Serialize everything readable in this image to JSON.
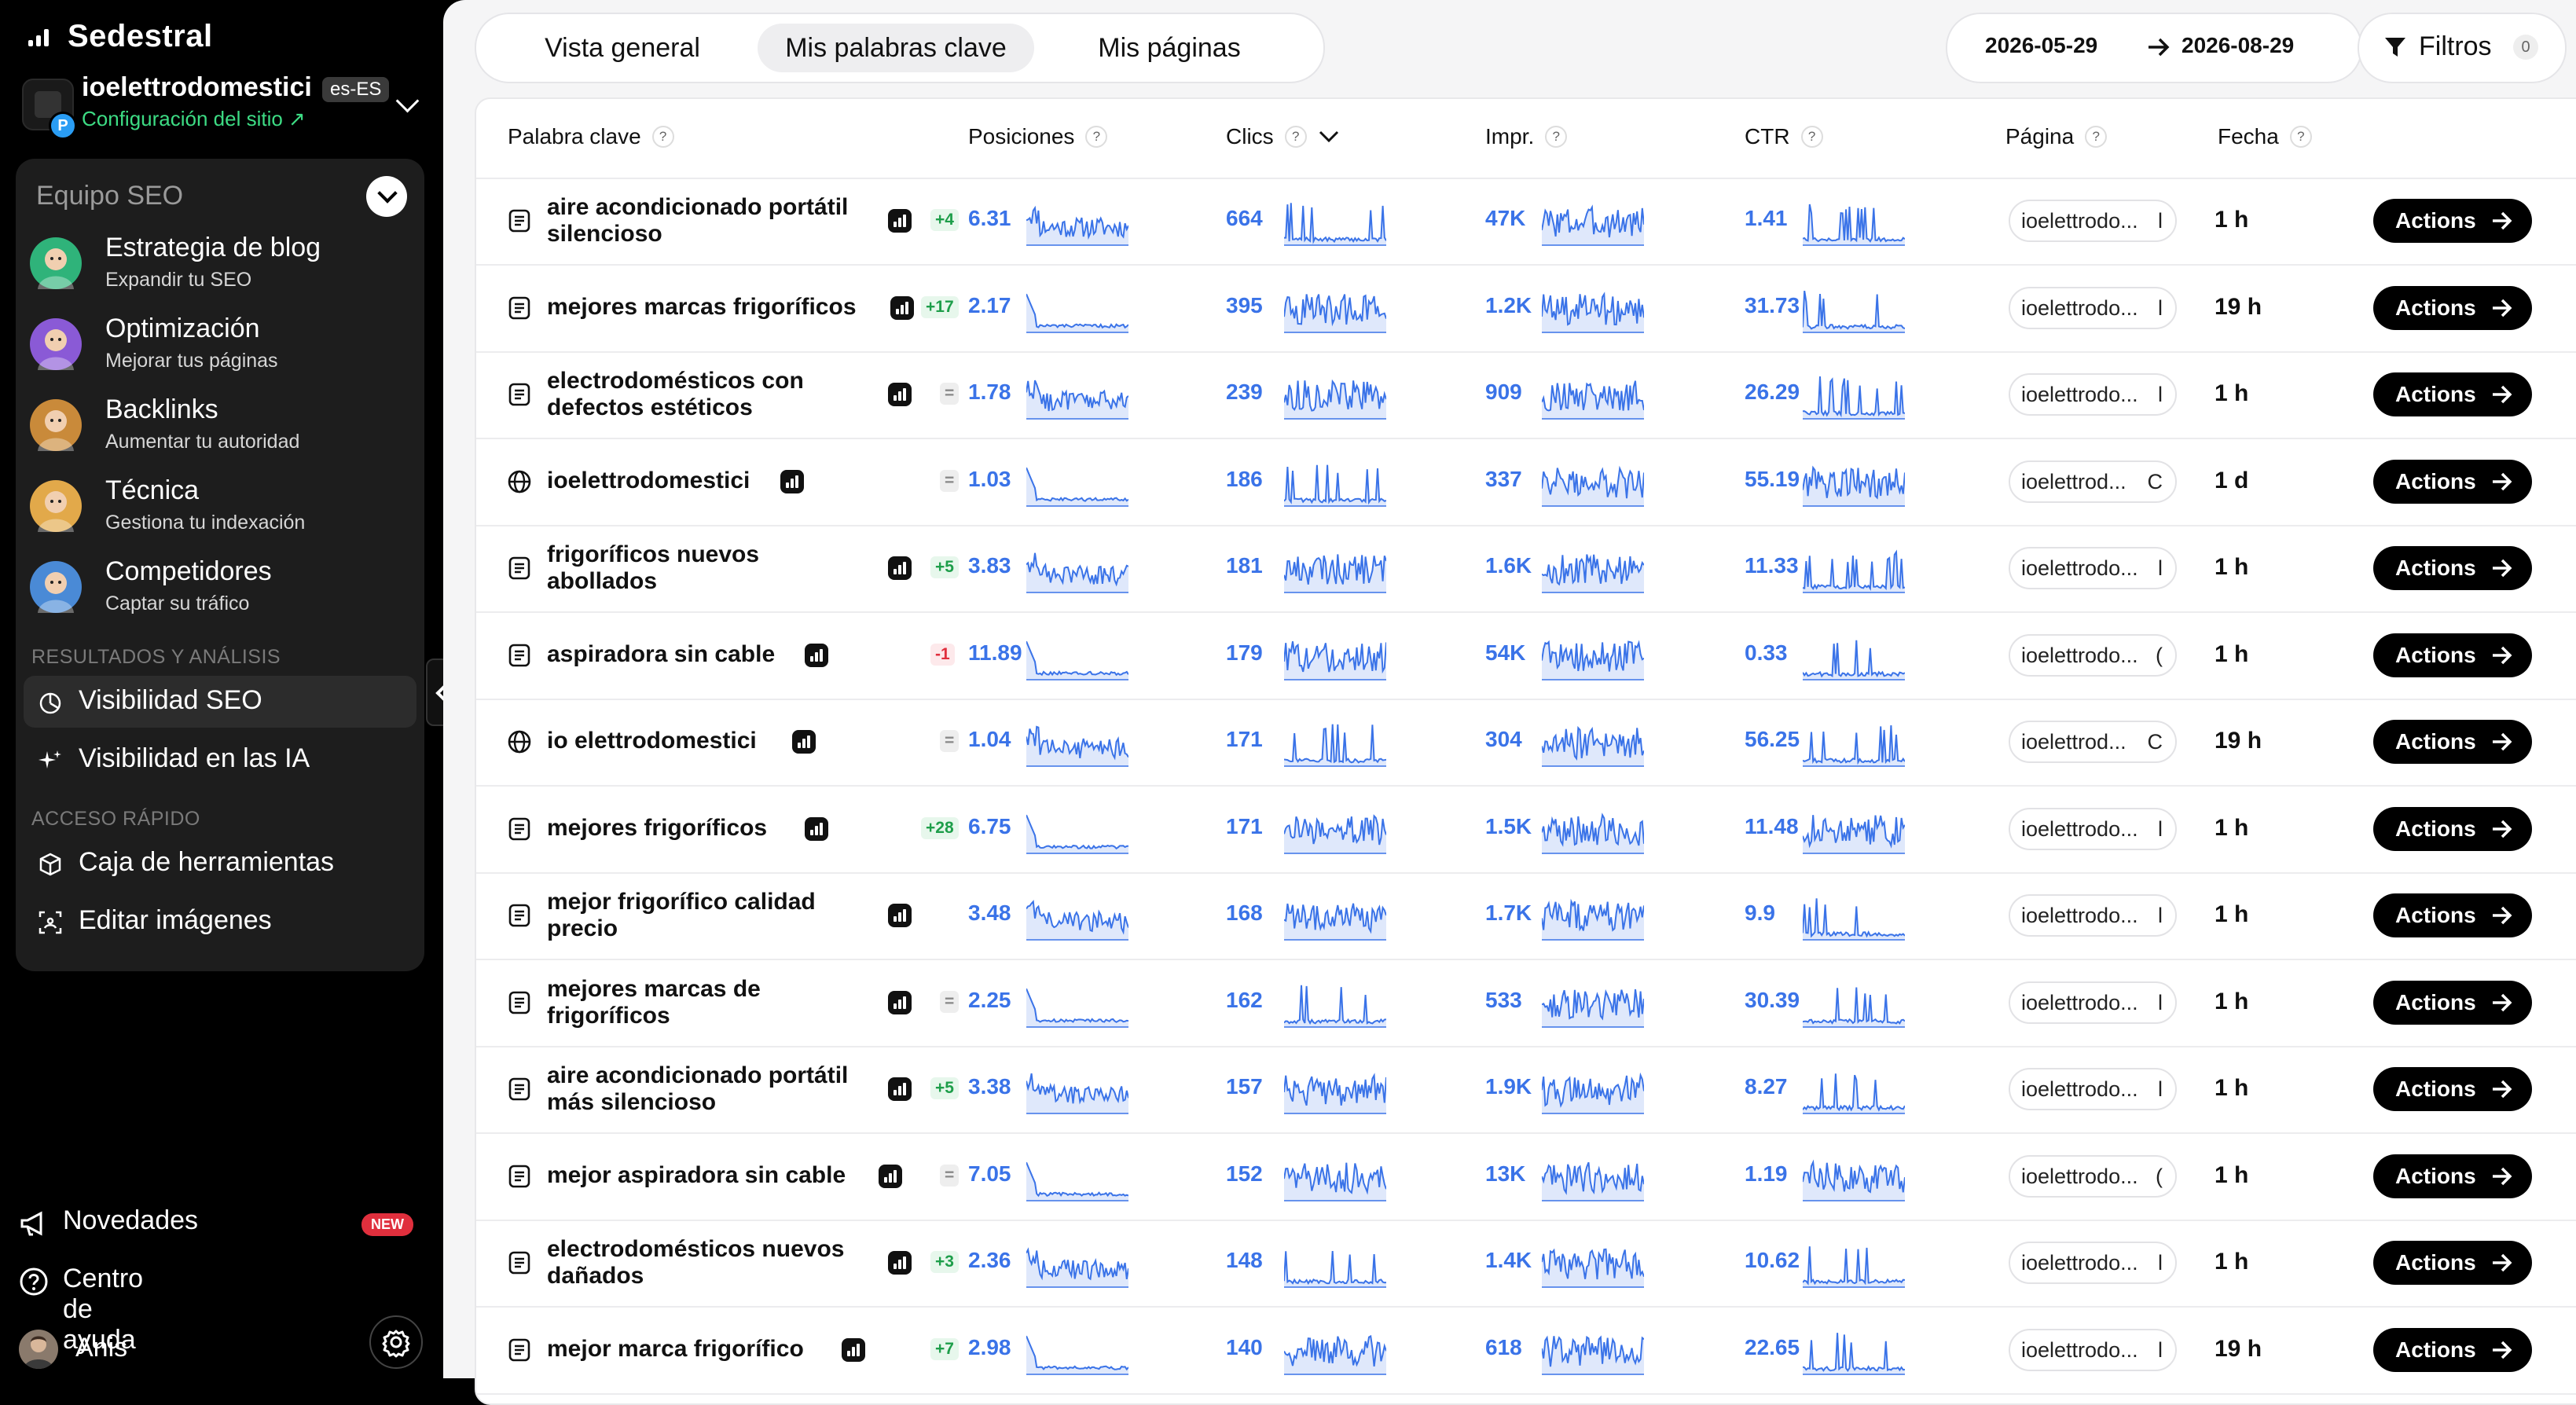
{
  "brand": "Sedestral",
  "site": {
    "name": "ioelettrodomestici",
    "lang": "es-ES",
    "config_link": "Configuración del sitio ↗",
    "favicon_badge": "P"
  },
  "team": {
    "title": "Equipo SEO",
    "agents": [
      {
        "title": "Estrategia de blog",
        "subtitle": "Expandir tu SEO",
        "color": "#2fb37a"
      },
      {
        "title": "Optimización",
        "subtitle": "Mejorar tus páginas",
        "color": "#8a5ad6"
      },
      {
        "title": "Backlinks",
        "subtitle": "Aumentar tu autoridad",
        "color": "#c98a3a"
      },
      {
        "title": "Técnica",
        "subtitle": "Gestiona tu indexación",
        "color": "#e2a94a"
      },
      {
        "title": "Competidores",
        "subtitle": "Captar su tráfico",
        "color": "#4a8ad6"
      }
    ]
  },
  "sections": {
    "results": "RESULTADOS Y ANÁLISIS",
    "quick": "ACCESO RÁPIDO"
  },
  "nav": {
    "visibility_seo": "Visibilidad SEO",
    "visibility_ai": "Visibilidad en las IA",
    "toolbox": "Caja de herramientas",
    "edit_images": "Editar imágenes"
  },
  "bottom": {
    "news": "Novedades",
    "news_badge": "NEW",
    "help": "Centro de ayuda",
    "user": "Anis"
  },
  "tabs": [
    "Vista general",
    "Mis palabras clave",
    "Mis páginas"
  ],
  "date_range": {
    "from": "2026-05-29",
    "to": "2026-08-29"
  },
  "filters": {
    "label": "Filtros",
    "count": "0"
  },
  "columns": {
    "keyword": "Palabra clave",
    "positions": "Posiciones",
    "clicks": "Clics",
    "impressions": "Impr.",
    "ctr": "CTR",
    "page": "Página",
    "date": "Fecha"
  },
  "help_mark": "?",
  "actions_label": "Actions",
  "colors": {
    "accent": "#3a73e8",
    "positive": "#1e9e4a",
    "negative": "#e02f3d",
    "active_tab": "#eeeef0"
  },
  "rows": [
    {
      "icon": "doc",
      "keyword": [
        "aire acondicionado portátil",
        "silencioso"
      ],
      "delta": "+4",
      "trend": "pos",
      "pos": "6.31",
      "clicks": "664",
      "impr": "47K",
      "ctr": "1.41",
      "page": "ioelettrodo...",
      "page_suffix": "l",
      "date": "1 h"
    },
    {
      "icon": "doc",
      "keyword": [
        "mejores marcas frigoríficos"
      ],
      "delta": "+17",
      "trend": "pos",
      "pos": "2.17",
      "clicks": "395",
      "impr": "1.2K",
      "ctr": "31.73",
      "page": "ioelettrodo...",
      "page_suffix": "l",
      "date": "19 h"
    },
    {
      "icon": "doc",
      "keyword": [
        "electrodomésticos con",
        "defectos estéticos"
      ],
      "delta": "=",
      "trend": "eq",
      "pos": "1.78",
      "clicks": "239",
      "impr": "909",
      "ctr": "26.29",
      "page": "ioelettrodo...",
      "page_suffix": "l",
      "date": "1 h"
    },
    {
      "icon": "globe",
      "keyword": [
        "ioelettrodomestici"
      ],
      "delta": "=",
      "trend": "eq",
      "pos": "1.03",
      "clicks": "186",
      "impr": "337",
      "ctr": "55.19",
      "page": "ioelettrod...",
      "page_suffix": "C",
      "date": "1 d"
    },
    {
      "icon": "doc",
      "keyword": [
        "frigoríficos nuevos",
        "abollados"
      ],
      "delta": "+5",
      "trend": "pos",
      "pos": "3.83",
      "clicks": "181",
      "impr": "1.6K",
      "ctr": "11.33",
      "page": "ioelettrodo...",
      "page_suffix": "l",
      "date": "1 h"
    },
    {
      "icon": "doc",
      "keyword": [
        "aspiradora sin cable"
      ],
      "delta": "-1",
      "trend": "neg",
      "pos": "11.89",
      "clicks": "179",
      "impr": "54K",
      "ctr": "0.33",
      "page": "ioelettrodo...",
      "page_suffix": "(",
      "date": "1 h"
    },
    {
      "icon": "globe",
      "keyword": [
        "io elettrodomestici"
      ],
      "delta": "=",
      "trend": "eq",
      "pos": "1.04",
      "clicks": "171",
      "impr": "304",
      "ctr": "56.25",
      "page": "ioelettrod...",
      "page_suffix": "C",
      "date": "19 h"
    },
    {
      "icon": "doc",
      "keyword": [
        "mejores frigoríficos"
      ],
      "delta": "+28",
      "trend": "pos",
      "pos": "6.75",
      "clicks": "171",
      "impr": "1.5K",
      "ctr": "11.48",
      "page": "ioelettrodo...",
      "page_suffix": "l",
      "date": "1 h"
    },
    {
      "icon": "doc",
      "keyword": [
        "mejor frigorífico calidad",
        "precio"
      ],
      "delta": "",
      "trend": "none",
      "pos": "3.48",
      "clicks": "168",
      "impr": "1.7K",
      "ctr": "9.9",
      "page": "ioelettrodo...",
      "page_suffix": "l",
      "date": "1 h"
    },
    {
      "icon": "doc",
      "keyword": [
        "mejores marcas de",
        "frigoríficos"
      ],
      "delta": "=",
      "trend": "eq",
      "pos": "2.25",
      "clicks": "162",
      "impr": "533",
      "ctr": "30.39",
      "page": "ioelettrodo...",
      "page_suffix": "l",
      "date": "1 h"
    },
    {
      "icon": "doc",
      "keyword": [
        "aire acondicionado portátil",
        "más silencioso"
      ],
      "delta": "+5",
      "trend": "pos",
      "pos": "3.38",
      "clicks": "157",
      "impr": "1.9K",
      "ctr": "8.27",
      "page": "ioelettrodo...",
      "page_suffix": "l",
      "date": "1 h"
    },
    {
      "icon": "doc",
      "keyword": [
        "mejor aspiradora sin cable"
      ],
      "delta": "=",
      "trend": "eq",
      "pos": "7.05",
      "clicks": "152",
      "impr": "13K",
      "ctr": "1.19",
      "page": "ioelettrodo...",
      "page_suffix": "(",
      "date": "1 h"
    },
    {
      "icon": "doc",
      "keyword": [
        "electrodomésticos nuevos",
        "dañados"
      ],
      "delta": "+3",
      "trend": "pos",
      "pos": "2.36",
      "clicks": "148",
      "impr": "1.4K",
      "ctr": "10.62",
      "page": "ioelettrodo...",
      "page_suffix": "l",
      "date": "1 h"
    },
    {
      "icon": "doc",
      "keyword": [
        "mejor marca frigorífico"
      ],
      "delta": "+7",
      "trend": "pos",
      "pos": "2.98",
      "clicks": "140",
      "impr": "618",
      "ctr": "22.65",
      "page": "ioelettrodo...",
      "page_suffix": "l",
      "date": "19 h"
    }
  ]
}
